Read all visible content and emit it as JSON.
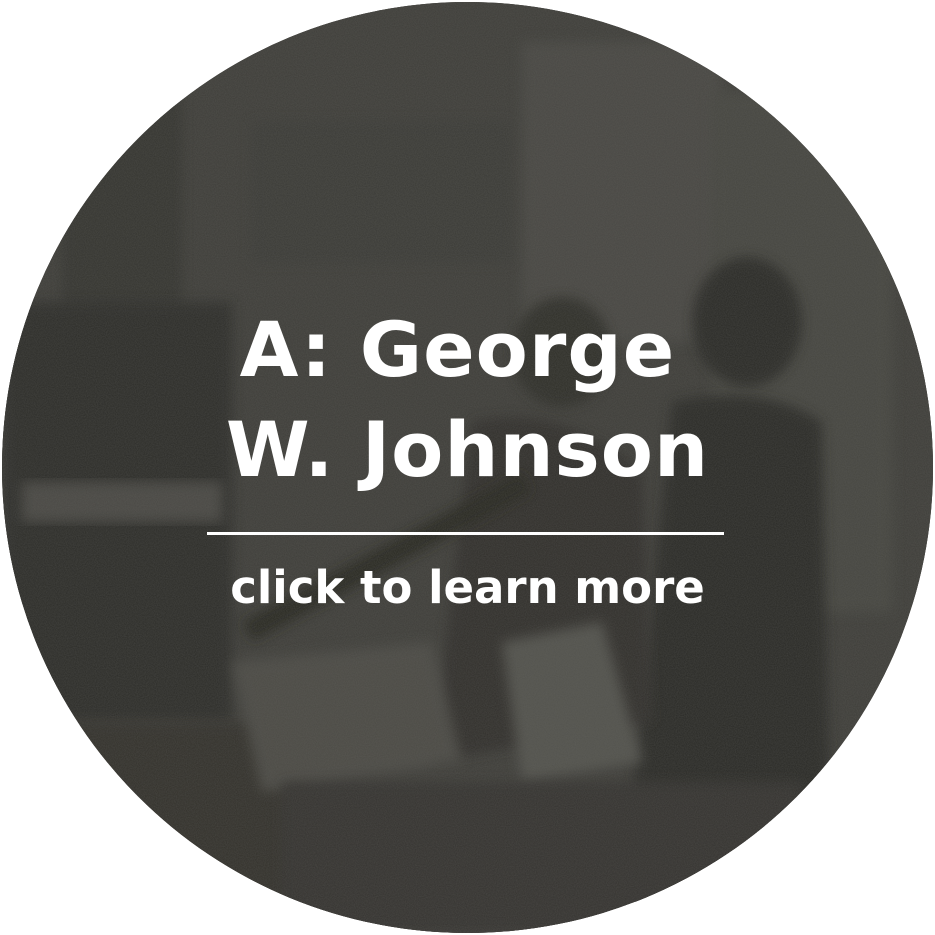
{
  "badge": {
    "title_line1": "A: George",
    "title_line2": "W. Johnson",
    "cta": "click to learn more"
  },
  "colors": {
    "background": "#ffffff",
    "badge_base": "#3d3c38",
    "text": "#ffffff"
  },
  "image": {
    "subject": "sepia-toned historical photograph of figures in a room"
  }
}
